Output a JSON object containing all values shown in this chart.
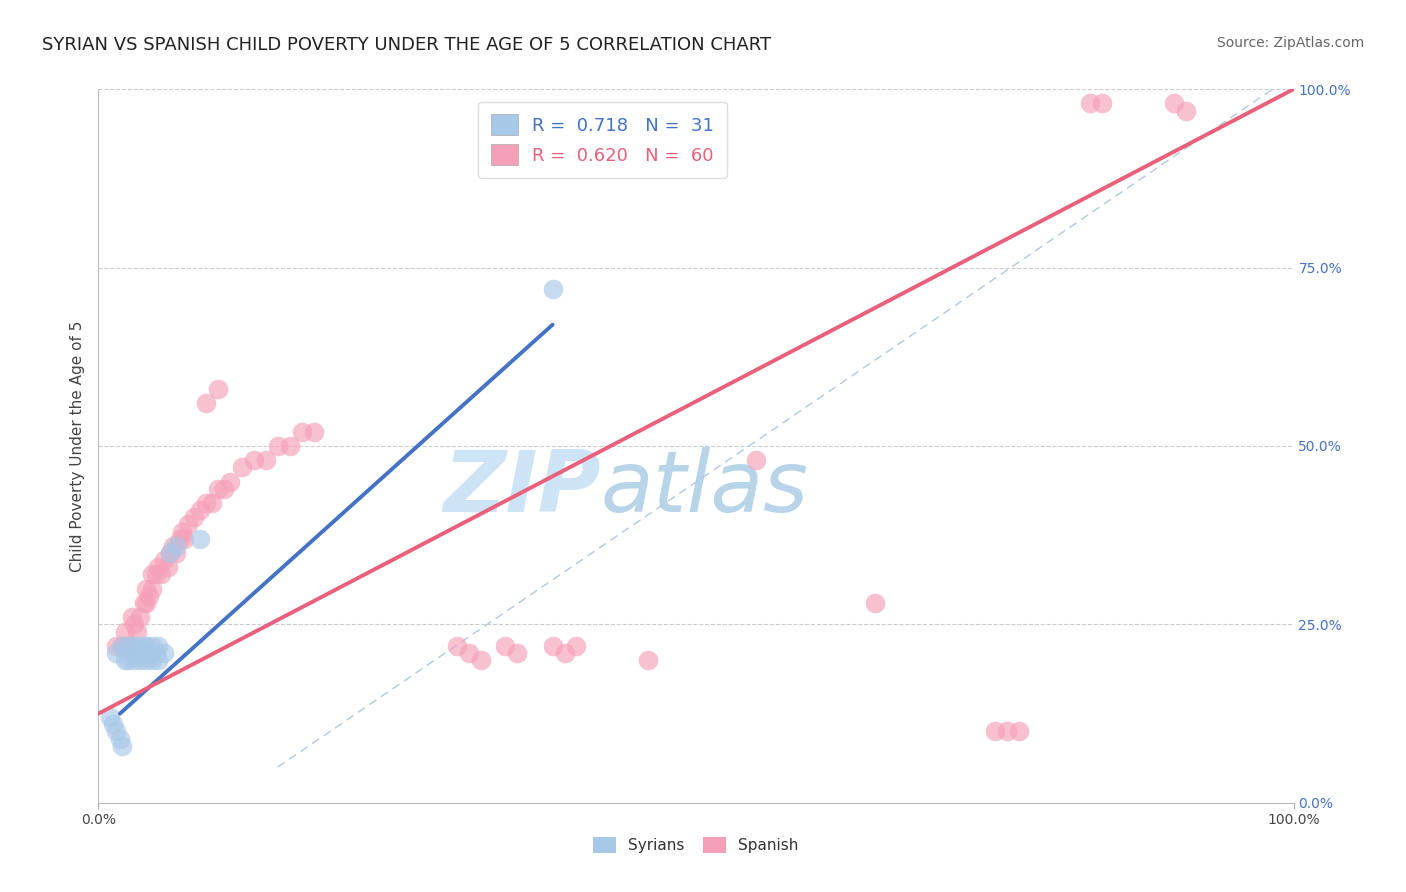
{
  "title": "SYRIAN VS SPANISH CHILD POVERTY UNDER THE AGE OF 5 CORRELATION CHART",
  "source": "Source: ZipAtlas.com",
  "ylabel": "Child Poverty Under the Age of 5",
  "xlim": [
    0,
    1
  ],
  "ylim": [
    0,
    1
  ],
  "ytick_positions": [
    0.0,
    0.25,
    0.5,
    0.75,
    1.0
  ],
  "ytick_labels_right": [
    "0.0%",
    "25.0%",
    "50.0%",
    "75.0%",
    "100.0%"
  ],
  "xtick_positions": [
    0.0,
    1.0
  ],
  "xtick_labels": [
    "0.0%",
    "100.0%"
  ],
  "syrian_color": "#a8c8e8",
  "spanish_color": "#f5a0b8",
  "syrian_line_color": "#4472c4",
  "spanish_line_color": "#e8607a",
  "diagonal_color": "#b0c8e8",
  "watermark_zip_color": "#cce0f0",
  "watermark_atlas_color": "#b0cce0",
  "background_color": "#ffffff",
  "grid_color": "#cccccc",
  "title_fontsize": 13,
  "source_fontsize": 10,
  "axis_label_fontsize": 11,
  "tick_fontsize": 10,
  "legend_fontsize": 13,
  "syrian_line_x0": 0.018,
  "syrian_line_y0": 0.125,
  "syrian_line_x1": 0.38,
  "syrian_line_y1": 0.67,
  "spanish_line_x0": 0.0,
  "spanish_line_y0": 0.125,
  "spanish_line_x1": 1.0,
  "spanish_line_y1": 1.0,
  "syrian_points": [
    [
      0.015,
      0.21
    ],
    [
      0.02,
      0.22
    ],
    [
      0.022,
      0.2
    ],
    [
      0.025,
      0.22
    ],
    [
      0.025,
      0.2
    ],
    [
      0.028,
      0.22
    ],
    [
      0.03,
      0.21
    ],
    [
      0.03,
      0.2
    ],
    [
      0.032,
      0.22
    ],
    [
      0.035,
      0.21
    ],
    [
      0.035,
      0.2
    ],
    [
      0.038,
      0.22
    ],
    [
      0.04,
      0.22
    ],
    [
      0.04,
      0.21
    ],
    [
      0.04,
      0.2
    ],
    [
      0.042,
      0.21
    ],
    [
      0.045,
      0.22
    ],
    [
      0.045,
      0.2
    ],
    [
      0.048,
      0.21
    ],
    [
      0.05,
      0.22
    ],
    [
      0.05,
      0.2
    ],
    [
      0.055,
      0.21
    ],
    [
      0.06,
      0.35
    ],
    [
      0.065,
      0.36
    ],
    [
      0.085,
      0.37
    ],
    [
      0.01,
      0.12
    ],
    [
      0.012,
      0.11
    ],
    [
      0.015,
      0.1
    ],
    [
      0.018,
      0.09
    ],
    [
      0.02,
      0.08
    ],
    [
      0.38,
      0.72
    ]
  ],
  "spanish_points": [
    [
      0.015,
      0.22
    ],
    [
      0.02,
      0.22
    ],
    [
      0.022,
      0.24
    ],
    [
      0.025,
      0.22
    ],
    [
      0.028,
      0.26
    ],
    [
      0.03,
      0.25
    ],
    [
      0.032,
      0.24
    ],
    [
      0.035,
      0.26
    ],
    [
      0.038,
      0.28
    ],
    [
      0.04,
      0.3
    ],
    [
      0.04,
      0.28
    ],
    [
      0.042,
      0.29
    ],
    [
      0.045,
      0.32
    ],
    [
      0.045,
      0.3
    ],
    [
      0.048,
      0.32
    ],
    [
      0.05,
      0.33
    ],
    [
      0.052,
      0.32
    ],
    [
      0.055,
      0.34
    ],
    [
      0.058,
      0.33
    ],
    [
      0.06,
      0.35
    ],
    [
      0.062,
      0.36
    ],
    [
      0.065,
      0.35
    ],
    [
      0.068,
      0.37
    ],
    [
      0.07,
      0.38
    ],
    [
      0.072,
      0.37
    ],
    [
      0.075,
      0.39
    ],
    [
      0.08,
      0.4
    ],
    [
      0.085,
      0.41
    ],
    [
      0.09,
      0.42
    ],
    [
      0.095,
      0.42
    ],
    [
      0.1,
      0.44
    ],
    [
      0.105,
      0.44
    ],
    [
      0.11,
      0.45
    ],
    [
      0.12,
      0.47
    ],
    [
      0.13,
      0.48
    ],
    [
      0.14,
      0.48
    ],
    [
      0.15,
      0.5
    ],
    [
      0.16,
      0.5
    ],
    [
      0.17,
      0.52
    ],
    [
      0.18,
      0.52
    ],
    [
      0.09,
      0.56
    ],
    [
      0.1,
      0.58
    ],
    [
      0.3,
      0.22
    ],
    [
      0.31,
      0.21
    ],
    [
      0.32,
      0.2
    ],
    [
      0.34,
      0.22
    ],
    [
      0.35,
      0.21
    ],
    [
      0.38,
      0.22
    ],
    [
      0.39,
      0.21
    ],
    [
      0.4,
      0.22
    ],
    [
      0.46,
      0.2
    ],
    [
      0.55,
      0.48
    ],
    [
      0.65,
      0.28
    ],
    [
      0.75,
      0.1
    ],
    [
      0.76,
      0.1
    ],
    [
      0.77,
      0.1
    ],
    [
      0.83,
      0.98
    ],
    [
      0.84,
      0.98
    ],
    [
      0.9,
      0.98
    ],
    [
      0.91,
      0.97
    ]
  ]
}
